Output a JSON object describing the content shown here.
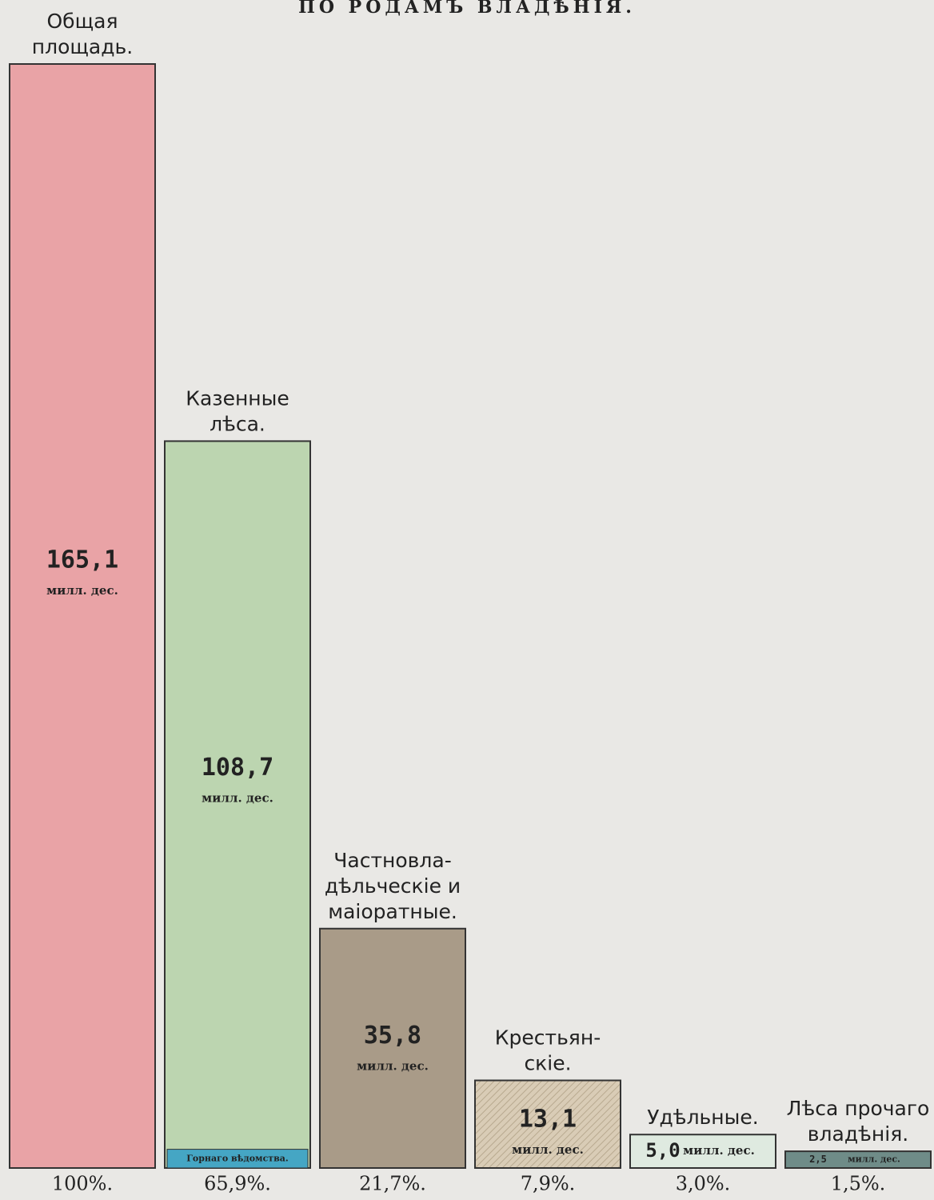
{
  "chart_data": {
    "type": "bar",
    "title": "ПО РОДАМЪ ВЛАДѢНІЯ.",
    "categories": [
      [
        "Общая",
        "площадь."
      ],
      [
        "Казенные",
        "лѣса."
      ],
      [
        "Частновла-",
        "дѣльческіе и",
        "маіоратные."
      ],
      [
        "Крестьян-",
        "скіе."
      ],
      [
        "Удѣльные."
      ],
      [
        "Лѣса прочаго",
        "владѣнія."
      ]
    ],
    "values": [
      165.1,
      108.7,
      35.8,
      13.1,
      5.0,
      2.5
    ],
    "value_labels": [
      "165,1",
      "108,7",
      "35,8",
      "13,1",
      "5,0",
      "2,5"
    ],
    "unit": "милл. дес.",
    "colors": [
      "#e9a3a6",
      "#bcd5b0",
      "#a99b88",
      "#d9ccb6",
      "#dfeae0",
      "#6f8c88"
    ],
    "hatched": [
      false,
      false,
      false,
      true,
      false,
      false
    ],
    "percents": [
      100,
      65.9,
      21.7,
      7.9,
      3.0,
      1.5
    ],
    "percent_labels": [
      "100%.",
      "65,9%.",
      "21,7%.",
      "7,9%.",
      "3,0%.",
      "1,5%."
    ],
    "sub_segment": {
      "label": "Горнаго вѣдомства.",
      "category_index": 1,
      "value": 2.8,
      "color": "#45a6c4"
    }
  }
}
